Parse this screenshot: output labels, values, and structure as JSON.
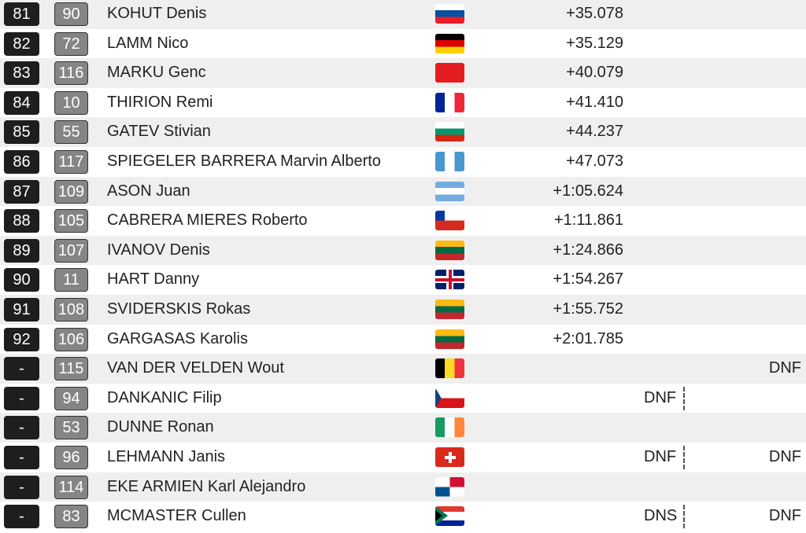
{
  "results": [
    {
      "rank": "81",
      "bib": "90",
      "name": "KOHUT Denis",
      "time": "+35.078"
    },
    {
      "rank": "82",
      "bib": "72",
      "name": "LAMM Nico",
      "time": "+35.129"
    },
    {
      "rank": "83",
      "bib": "116",
      "name": "MARKU Genc",
      "time": "+40.079"
    },
    {
      "rank": "84",
      "bib": "10",
      "name": "THIRION Remi",
      "time": "+41.410"
    },
    {
      "rank": "85",
      "bib": "55",
      "name": "GATEV Stivian",
      "time": "+44.237"
    },
    {
      "rank": "86",
      "bib": "117",
      "name": "SPIEGELER BARRERA Marvin Alberto",
      "time": "+47.073"
    },
    {
      "rank": "87",
      "bib": "109",
      "name": "ASON Juan",
      "time": "+1:05.624"
    },
    {
      "rank": "88",
      "bib": "105",
      "name": "CABRERA MIERES Roberto",
      "time": "+1:11.861"
    },
    {
      "rank": "89",
      "bib": "107",
      "name": "IVANOV Denis",
      "time": "+1:24.866"
    },
    {
      "rank": "90",
      "bib": "11",
      "name": "HART Danny",
      "time": "+1:54.267"
    },
    {
      "rank": "91",
      "bib": "108",
      "name": "SVIDERSKIS Rokas",
      "time": "+1:55.752"
    },
    {
      "rank": "92",
      "bib": "106",
      "name": "GARGASAS Karolis",
      "time": "+2:01.785"
    },
    {
      "rank": "-",
      "bib": "115",
      "name": "VAN DER VELDEN Wout",
      "run2": "DNF"
    },
    {
      "rank": "-",
      "bib": "94",
      "name": "DANKANIC Filip",
      "run1": "DNF"
    },
    {
      "rank": "-",
      "bib": "53",
      "name": "DUNNE Ronan"
    },
    {
      "rank": "-",
      "bib": "96",
      "name": "LEHMANN Janis",
      "run1": "DNF",
      "run2": "DNF"
    },
    {
      "rank": "-",
      "bib": "114",
      "name": "EKE ARMIEN Karl Alejandro"
    },
    {
      "rank": "-",
      "bib": "83",
      "name": "MCMASTER Cullen",
      "run1": "DNS",
      "run2": "DNF"
    }
  ]
}
